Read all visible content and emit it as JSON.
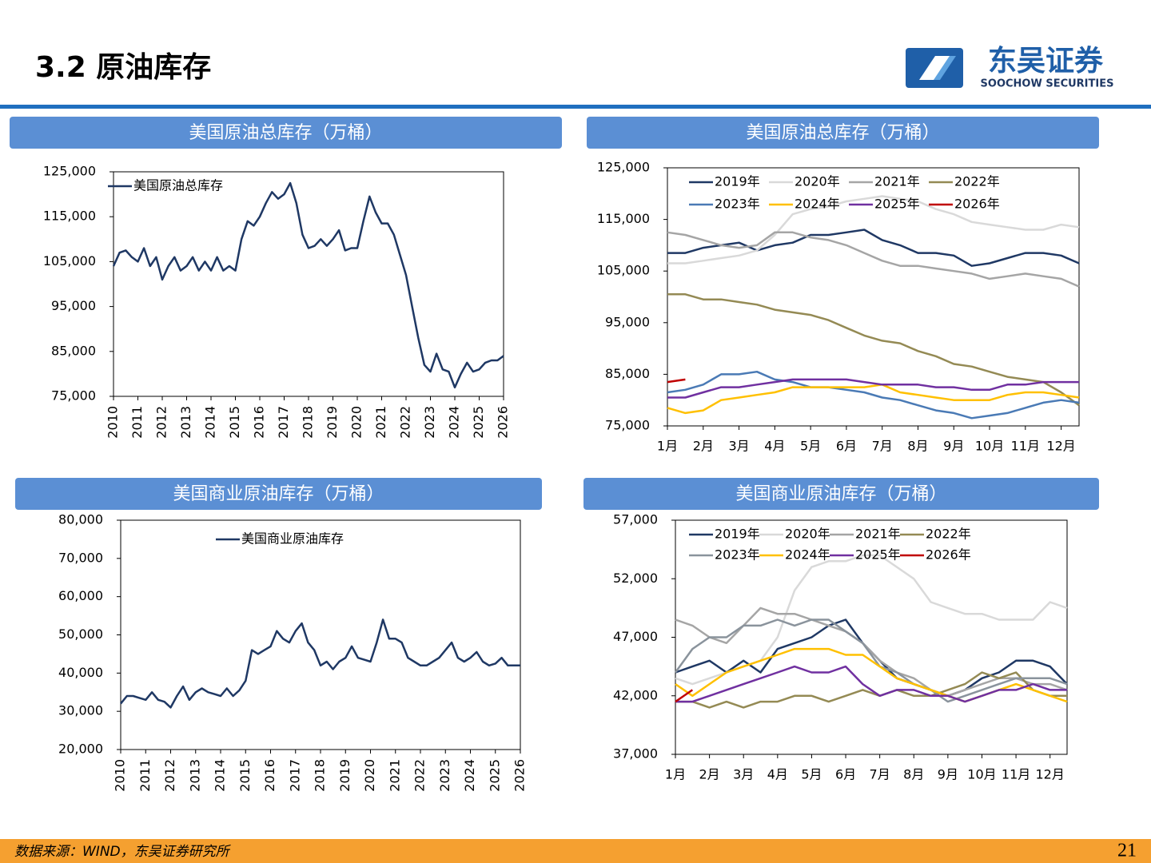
{
  "header": {
    "title": "3.2 原油库存",
    "logo_cn": "东吴证券",
    "logo_en": "SOOCHOW SECURITIES"
  },
  "footer": {
    "source": "数据来源：WIND，东吴证券研究所",
    "page": "21"
  },
  "chart_data": [
    {
      "type": "line",
      "title": "美国原油总库存（万桶）",
      "x": [
        2010,
        2010.25,
        2010.5,
        2010.75,
        2011,
        2011.25,
        2011.5,
        2011.75,
        2012,
        2012.25,
        2012.5,
        2012.75,
        2013,
        2013.25,
        2013.5,
        2013.75,
        2014,
        2014.25,
        2014.5,
        2014.75,
        2015,
        2015.25,
        2015.5,
        2015.75,
        2016,
        2016.25,
        2016.5,
        2016.75,
        2017,
        2017.25,
        2017.5,
        2017.75,
        2018,
        2018.25,
        2018.5,
        2018.75,
        2019,
        2019.25,
        2019.5,
        2019.75,
        2020,
        2020.25,
        2020.5,
        2020.75,
        2021,
        2021.25,
        2021.5,
        2021.75,
        2022,
        2022.25,
        2022.5,
        2022.75,
        2023,
        2023.25,
        2023.5,
        2023.75,
        2024,
        2024.25,
        2024.5,
        2024.75,
        2025,
        2025.25,
        2025.5,
        2025.75,
        2026
      ],
      "xlim": [
        2010,
        2026
      ],
      "xticks": [
        2010,
        2011,
        2012,
        2013,
        2014,
        2015,
        2016,
        2017,
        2018,
        2019,
        2020,
        2021,
        2022,
        2023,
        2024,
        2025,
        2026
      ],
      "ylim": [
        75000,
        125000
      ],
      "yticks": [
        {
          "value": 75000,
          "label": "75,000"
        },
        {
          "value": 85000,
          "label": "85,000"
        },
        {
          "value": 95000,
          "label": "95,000"
        },
        {
          "value": 105000,
          "label": "105,000"
        },
        {
          "value": 115000,
          "label": "115,000"
        },
        {
          "value": 125000,
          "label": "125,000"
        }
      ],
      "series": [
        {
          "name": "美国原油总库存",
          "color": "#1f3864",
          "values": [
            104000,
            107000,
            107500,
            106000,
            105000,
            108000,
            104000,
            106000,
            101000,
            104000,
            106000,
            103000,
            104000,
            106000,
            103000,
            105000,
            103000,
            106000,
            103000,
            104000,
            103000,
            110000,
            114000,
            113000,
            115000,
            118000,
            120500,
            119000,
            120000,
            122500,
            118000,
            111000,
            108000,
            108500,
            110000,
            108500,
            110000,
            112000,
            107500,
            108000,
            108000,
            114000,
            119500,
            116000,
            113500,
            113500,
            111000,
            106500,
            102000,
            95000,
            88000,
            82000,
            80500,
            84500,
            81000,
            80500,
            77000,
            80000,
            82500,
            80500,
            81000,
            82500,
            83000,
            83000,
            84000
          ]
        }
      ]
    },
    {
      "type": "line",
      "title": "美国原油总库存（万桶）",
      "x": [
        1,
        1.5,
        2,
        2.5,
        3,
        3.5,
        4,
        4.5,
        5,
        5.5,
        6,
        6.5,
        7,
        7.5,
        8,
        8.5,
        9,
        9.5,
        10,
        10.5,
        11,
        11.5,
        12,
        12.5
      ],
      "xlim": [
        1,
        12.5
      ],
      "xticks": [
        {
          "value": 1,
          "label": "1月"
        },
        {
          "value": 2,
          "label": "2月"
        },
        {
          "value": 3,
          "label": "3月"
        },
        {
          "value": 4,
          "label": "4月"
        },
        {
          "value": 5,
          "label": "5月"
        },
        {
          "value": 6,
          "label": "6月"
        },
        {
          "value": 7,
          "label": "7月"
        },
        {
          "value": 8,
          "label": "8月"
        },
        {
          "value": 9,
          "label": "9月"
        },
        {
          "value": 10,
          "label": "10月"
        },
        {
          "value": 11,
          "label": "11月"
        },
        {
          "value": 12,
          "label": "12月"
        }
      ],
      "ylim": [
        75000,
        125000
      ],
      "yticks": [
        {
          "value": 75000,
          "label": "75,000"
        },
        {
          "value": 85000,
          "label": "85,000"
        },
        {
          "value": 95000,
          "label": "95,000"
        },
        {
          "value": 105000,
          "label": "105,000"
        },
        {
          "value": 115000,
          "label": "115,000"
        },
        {
          "value": 125000,
          "label": "125,000"
        }
      ],
      "series": [
        {
          "name": "2019年",
          "color": "#1f3864",
          "values": [
            108500,
            108500,
            109500,
            110000,
            110500,
            109000,
            110000,
            110500,
            112000,
            112000,
            112500,
            113000,
            111000,
            110000,
            108500,
            108500,
            108000,
            106000,
            106500,
            107500,
            108500,
            108500,
            108000,
            106500
          ]
        },
        {
          "name": "2020年",
          "color": "#d9d9d9",
          "values": [
            106500,
            106500,
            107000,
            107500,
            108000,
            109000,
            112000,
            116000,
            117000,
            117500,
            118500,
            119000,
            119500,
            119000,
            118500,
            117000,
            116000,
            114500,
            114000,
            113500,
            113000,
            113000,
            114000,
            113500
          ]
        },
        {
          "name": "2021年",
          "color": "#a5a5a5",
          "values": [
            112500,
            112000,
            111000,
            110000,
            109500,
            110000,
            112500,
            112500,
            111500,
            111000,
            110000,
            108500,
            107000,
            106000,
            106000,
            105500,
            105000,
            104500,
            103500,
            104000,
            104500,
            104000,
            103500,
            102000
          ]
        },
        {
          "name": "2022年",
          "color": "#948a54",
          "values": [
            100500,
            100500,
            99500,
            99500,
            99000,
            98500,
            97500,
            97000,
            96500,
            95500,
            94000,
            92500,
            91500,
            91000,
            89500,
            88500,
            87000,
            86500,
            85500,
            84500,
            84000,
            83500,
            81500,
            79000
          ]
        },
        {
          "name": "2023年",
          "color": "#4a7ab5",
          "values": [
            81500,
            82000,
            83000,
            85000,
            85000,
            85500,
            84000,
            83500,
            82500,
            82500,
            82000,
            81500,
            80500,
            80000,
            79000,
            78000,
            77500,
            76500,
            77000,
            77500,
            78500,
            79500,
            80000,
            79500
          ]
        },
        {
          "name": "2024年",
          "color": "#ffc000",
          "values": [
            78500,
            77500,
            78000,
            80000,
            80500,
            81000,
            81500,
            82500,
            82500,
            82500,
            82500,
            82500,
            83000,
            81500,
            81000,
            80500,
            80000,
            80000,
            80000,
            81000,
            81500,
            81500,
            81000,
            80500
          ]
        },
        {
          "name": "2025年",
          "color": "#7030a0",
          "values": [
            80500,
            80500,
            81500,
            82500,
            82500,
            83000,
            83500,
            84000,
            84000,
            84000,
            84000,
            83500,
            83000,
            83000,
            83000,
            82500,
            82500,
            82000,
            82000,
            83000,
            83000,
            83500,
            83500,
            83500
          ]
        },
        {
          "name": "2026年",
          "color": "#c00000",
          "values": [
            83500,
            84000,
            null,
            null,
            null,
            null,
            null,
            null,
            null,
            null,
            null,
            null,
            null,
            null,
            null,
            null,
            null,
            null,
            null,
            null,
            null,
            null,
            null,
            null
          ]
        }
      ]
    },
    {
      "type": "line",
      "title": "美国商业原油库存（万桶）",
      "x": [
        2010,
        2010.25,
        2010.5,
        2010.75,
        2011,
        2011.25,
        2011.5,
        2011.75,
        2012,
        2012.25,
        2012.5,
        2012.75,
        2013,
        2013.25,
        2013.5,
        2013.75,
        2014,
        2014.25,
        2014.5,
        2014.75,
        2015,
        2015.25,
        2015.5,
        2015.75,
        2016,
        2016.25,
        2016.5,
        2016.75,
        2017,
        2017.25,
        2017.5,
        2017.75,
        2018,
        2018.25,
        2018.5,
        2018.75,
        2019,
        2019.25,
        2019.5,
        2019.75,
        2020,
        2020.25,
        2020.5,
        2020.75,
        2021,
        2021.25,
        2021.5,
        2021.75,
        2022,
        2022.25,
        2022.5,
        2022.75,
        2023,
        2023.25,
        2023.5,
        2023.75,
        2024,
        2024.25,
        2024.5,
        2024.75,
        2025,
        2025.25,
        2025.5,
        2025.75,
        2026
      ],
      "xlim": [
        2010,
        2026
      ],
      "xticks": [
        2010,
        2011,
        2012,
        2013,
        2014,
        2015,
        2016,
        2017,
        2018,
        2019,
        2020,
        2021,
        2022,
        2023,
        2024,
        2025,
        2026
      ],
      "ylim": [
        20000,
        80000
      ],
      "yticks": [
        {
          "value": 20000,
          "label": "20,000"
        },
        {
          "value": 30000,
          "label": "30,000"
        },
        {
          "value": 40000,
          "label": "40,000"
        },
        {
          "value": 50000,
          "label": "50,000"
        },
        {
          "value": 60000,
          "label": "60,000"
        },
        {
          "value": 70000,
          "label": "70,000"
        },
        {
          "value": 80000,
          "label": "80,000"
        }
      ],
      "series": [
        {
          "name": "美国商业原油库存",
          "color": "#1f3864",
          "values": [
            32000,
            34000,
            34000,
            33500,
            33000,
            35000,
            33000,
            32500,
            31000,
            34000,
            36500,
            33000,
            35000,
            36000,
            35000,
            34500,
            34000,
            36000,
            34000,
            35500,
            38000,
            46000,
            45000,
            46000,
            47000,
            51000,
            49000,
            48000,
            51000,
            53000,
            48000,
            46000,
            42000,
            43000,
            41000,
            43000,
            44000,
            47000,
            44000,
            43500,
            43000,
            48000,
            54000,
            49000,
            49000,
            48000,
            44000,
            43000,
            42000,
            42000,
            43000,
            44000,
            46000,
            48000,
            44000,
            43000,
            44000,
            45500,
            43000,
            42000,
            42500,
            44000,
            42000,
            42000,
            42000
          ]
        }
      ]
    },
    {
      "type": "line",
      "title": "美国商业原油库存（万桶）",
      "x": [
        1,
        1.5,
        2,
        2.5,
        3,
        3.5,
        4,
        4.5,
        5,
        5.5,
        6,
        6.5,
        7,
        7.5,
        8,
        8.5,
        9,
        9.5,
        10,
        10.5,
        11,
        11.5,
        12,
        12.5
      ],
      "xlim": [
        1,
        12.5
      ],
      "xticks": [
        {
          "value": 1,
          "label": "1月"
        },
        {
          "value": 2,
          "label": "2月"
        },
        {
          "value": 3,
          "label": "3月"
        },
        {
          "value": 4,
          "label": "4月"
        },
        {
          "value": 5,
          "label": "5月"
        },
        {
          "value": 6,
          "label": "6月"
        },
        {
          "value": 7,
          "label": "7月"
        },
        {
          "value": 8,
          "label": "8月"
        },
        {
          "value": 9,
          "label": "9月"
        },
        {
          "value": 10,
          "label": "10月"
        },
        {
          "value": 11,
          "label": "11月"
        },
        {
          "value": 12,
          "label": "12月"
        }
      ],
      "ylim": [
        37000,
        57000
      ],
      "yticks": [
        {
          "value": 37000,
          "label": "37,000"
        },
        {
          "value": 42000,
          "label": "42,000"
        },
        {
          "value": 47000,
          "label": "47,000"
        },
        {
          "value": 52000,
          "label": "52,000"
        },
        {
          "value": 57000,
          "label": "57,000"
        }
      ],
      "series": [
        {
          "name": "2019年",
          "color": "#1f3864",
          "values": [
            44000,
            44500,
            45000,
            44000,
            45000,
            44000,
            46000,
            46500,
            47000,
            48000,
            48500,
            46500,
            45000,
            43500,
            43000,
            42500,
            42000,
            42500,
            43500,
            44000,
            45000,
            45000,
            44500,
            43000
          ]
        },
        {
          "name": "2020年",
          "color": "#d9d9d9",
          "values": [
            43500,
            43000,
            43500,
            44000,
            44500,
            45000,
            47000,
            51000,
            53000,
            53500,
            53500,
            54000,
            54000,
            53000,
            52000,
            50000,
            49500,
            49000,
            49000,
            48500,
            48500,
            48500,
            50000,
            49500
          ]
        },
        {
          "name": "2021年",
          "color": "#a5a5a5",
          "values": [
            48500,
            48000,
            47000,
            46500,
            48000,
            49500,
            49000,
            49000,
            48500,
            48000,
            47500,
            46500,
            45000,
            44000,
            43500,
            42500,
            42000,
            42500,
            43000,
            43500,
            43500,
            43000,
            43000,
            42500
          ]
        },
        {
          "name": "2022年",
          "color": "#948a54",
          "values": [
            41500,
            41500,
            41000,
            41500,
            41000,
            41500,
            41500,
            42000,
            42000,
            41500,
            42000,
            42500,
            42000,
            42500,
            42000,
            42000,
            42500,
            43000,
            44000,
            43500,
            44000,
            42500,
            42000,
            42000
          ]
        },
        {
          "name": "2023年",
          "color": "#8a939c",
          "values": [
            44000,
            46000,
            47000,
            47000,
            48000,
            48000,
            48500,
            48000,
            48500,
            48500,
            47500,
            46500,
            44500,
            44000,
            43000,
            42500,
            41500,
            42000,
            42500,
            43000,
            43500,
            43500,
            43500,
            43000
          ]
        },
        {
          "name": "2024年",
          "color": "#ffc000",
          "values": [
            43000,
            42000,
            43000,
            44000,
            44500,
            45000,
            45500,
            46000,
            46000,
            46000,
            45500,
            45500,
            44500,
            43500,
            43000,
            42500,
            42000,
            41500,
            42000,
            42500,
            43000,
            42500,
            42000,
            41500
          ]
        },
        {
          "name": "2025年",
          "color": "#7030a0",
          "values": [
            41500,
            41500,
            42000,
            42500,
            43000,
            43500,
            44000,
            44500,
            44000,
            44000,
            44500,
            43000,
            42000,
            42500,
            42500,
            42000,
            42000,
            41500,
            42000,
            42500,
            42500,
            43000,
            42500,
            42500
          ]
        },
        {
          "name": "2026年",
          "color": "#c00000",
          "values": [
            41500,
            42500,
            null,
            null,
            null,
            null,
            null,
            null,
            null,
            null,
            null,
            null,
            null,
            null,
            null,
            null,
            null,
            null,
            null,
            null,
            null,
            null,
            null,
            null
          ]
        }
      ]
    }
  ]
}
